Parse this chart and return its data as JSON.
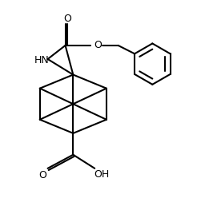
{
  "bg_color": "#ffffff",
  "line_color": "#000000",
  "line_width": 1.5,
  "figsize": [
    2.56,
    2.58
  ],
  "dpi": 100,
  "xlim": [
    0,
    10
  ],
  "ylim": [
    0.5,
    11.0
  ]
}
